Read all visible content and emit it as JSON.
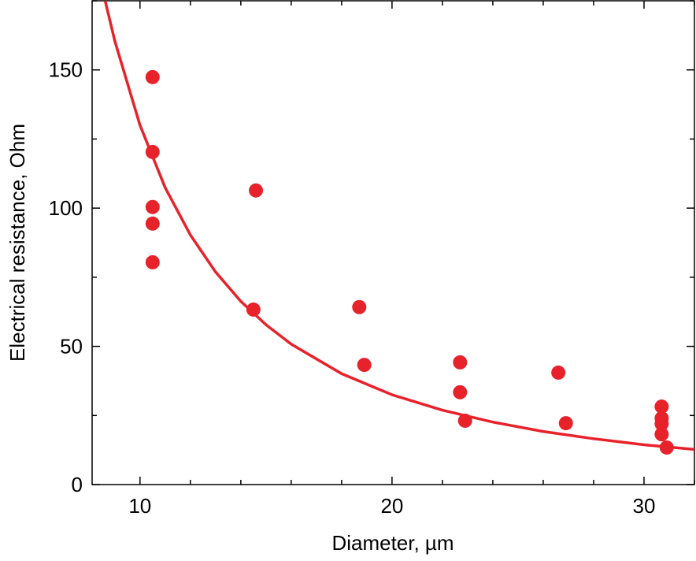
{
  "chart_data": {
    "type": "scatter",
    "x_label": "Diameter, µm",
    "y_label": "Electrical resistance, Ohm",
    "xlim": [
      8.1,
      32
    ],
    "ylim": [
      0,
      175
    ],
    "xticks": [
      10,
      20,
      30
    ],
    "yticks": [
      0,
      50,
      100,
      150
    ],
    "x_minor_ticks": [
      12,
      14,
      16,
      18,
      22,
      24,
      26,
      28,
      32
    ],
    "y_minor_ticks": [
      25,
      75,
      125,
      175
    ],
    "series": [
      {
        "type": "scatter",
        "color": "#e8222b",
        "x": [
          10.5,
          10.5,
          10.5,
          10.5,
          10.5,
          14.6,
          14.5,
          18.7,
          18.9,
          22.7,
          22.7,
          22.9,
          26.6,
          26.9,
          30.7,
          30.7,
          30.7,
          30.7,
          30.9
        ],
        "values": [
          147.4,
          120.3,
          100.4,
          94.4,
          80.4,
          106.4,
          63.3,
          64.2,
          43.3,
          44.2,
          33.4,
          23.1,
          40.5,
          22.2,
          28.2,
          24,
          22,
          18.2,
          13.4
        ]
      },
      {
        "type": "line",
        "color": "#e8222b",
        "x": [
          8.62,
          9,
          10,
          11,
          12,
          13,
          14,
          15,
          16,
          18,
          20,
          22,
          24,
          26,
          28,
          30,
          32
        ],
        "values": [
          174.96,
          160.5,
          130,
          107.4,
          90.3,
          76.9,
          66.3,
          57.8,
          50.8,
          40.1,
          32.5,
          26.9,
          22.6,
          19.2,
          16.6,
          14.4,
          12.7
        ]
      }
    ]
  }
}
